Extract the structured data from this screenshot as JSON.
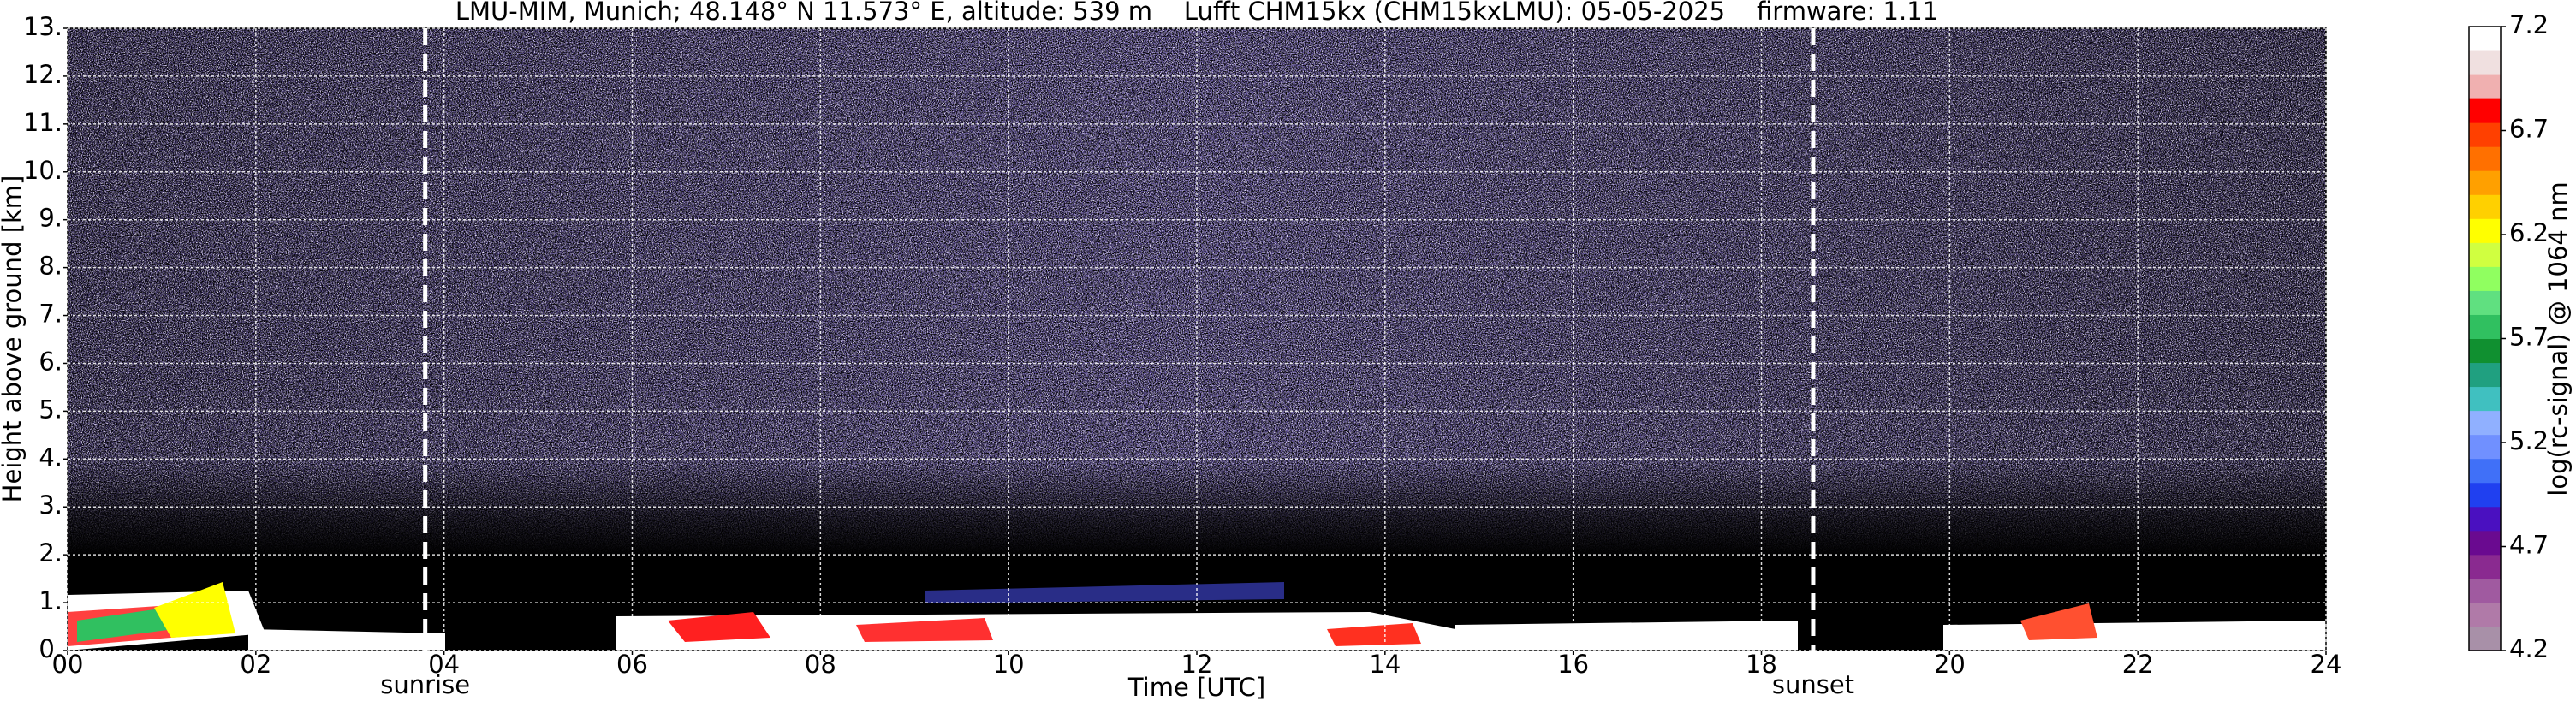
{
  "chart_data": {
    "type": "heatmap",
    "title": "LMU-MIM, Munich; 48.148° N 11.573° E, altitude: 539 m    Lufft CHM15kx (CHM15kxLMU): 05-05-2025    firmware: 1.11",
    "xlabel": "Time [UTC]",
    "ylabel": "Height above ground [km]",
    "xlim": [
      0,
      24
    ],
    "xticks": [
      {
        "value": 0,
        "label": "00"
      },
      {
        "value": 2,
        "label": "02"
      },
      {
        "value": 4,
        "label": "04"
      },
      {
        "value": 6,
        "label": "06"
      },
      {
        "value": 8,
        "label": "08"
      },
      10,
      12,
      14,
      16,
      18,
      20,
      22,
      24
    ],
    "ylim": [
      0,
      13
    ],
    "yticks": [
      {
        "value": 0,
        "label": "0."
      },
      {
        "value": 1,
        "label": "1."
      },
      {
        "value": 2,
        "label": "2."
      },
      {
        "value": 3,
        "label": "3."
      },
      {
        "value": 4,
        "label": "4."
      },
      {
        "value": 5,
        "label": "5."
      },
      {
        "value": 6,
        "label": "6."
      },
      {
        "value": 7,
        "label": "7."
      },
      {
        "value": 8,
        "label": "8."
      },
      {
        "value": 9,
        "label": "9."
      },
      {
        "value": 10,
        "label": "10."
      },
      {
        "value": 11,
        "label": "11."
      },
      {
        "value": 12,
        "label": "12."
      },
      {
        "value": 13,
        "label": "13."
      }
    ],
    "grid": true,
    "annotations": [
      {
        "text": "sunrise",
        "x": 3.8
      },
      {
        "text": "sunset",
        "x": 18.55
      }
    ],
    "colorbar": {
      "label": "log(rc-signal) @ 1064 nm",
      "lim": [
        4.2,
        7.2
      ],
      "ticks": [
        4.2,
        4.7,
        5.2,
        5.7,
        6.2,
        6.7,
        7.2
      ],
      "colors": [
        "#a890a8",
        "#b07aa8",
        "#a05aa0",
        "#8a2a90",
        "#6a0a90",
        "#4a10c0",
        "#2040f0",
        "#4070f8",
        "#7090ff",
        "#90b0ff",
        "#40c0c0",
        "#20a080",
        "#109030",
        "#30c060",
        "#60e080",
        "#90ff60",
        "#d0ff40",
        "#ffff00",
        "#ffd000",
        "#ffa000",
        "#ff7000",
        "#ff4000",
        "#ff0000",
        "#f0b0b0",
        "#f0e0e0",
        "#ffffff"
      ]
    }
  }
}
